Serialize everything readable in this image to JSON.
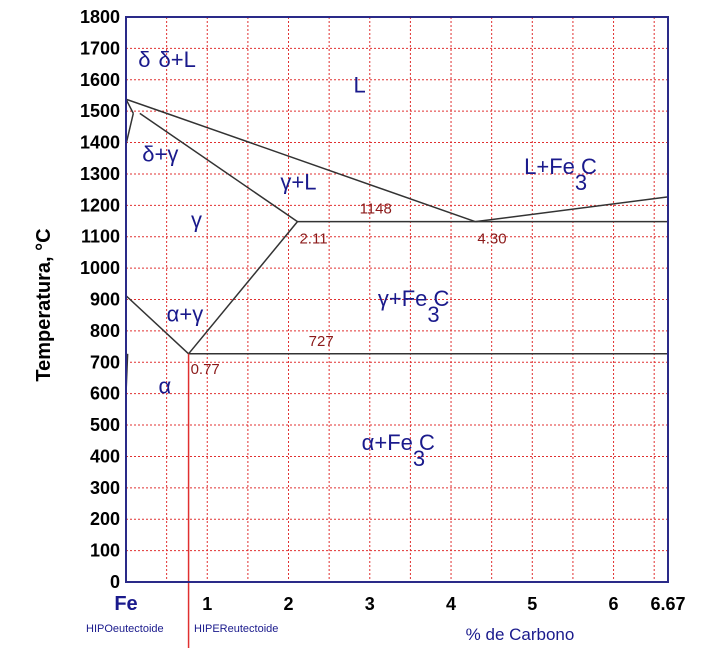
{
  "chart_data": {
    "type": "line",
    "title": "",
    "ylabel": "Temperatura, °C",
    "xlabel": "% de Carbono",
    "ylim": [
      0,
      1800
    ],
    "xlim": [
      0,
      6.67
    ],
    "yticks": [
      "0",
      "100",
      "200",
      "300",
      "400",
      "500",
      "600",
      "700",
      "800",
      "900",
      "1000",
      "1100",
      "1200",
      "1300",
      "1400",
      "1500",
      "1600",
      "1700",
      "1800"
    ],
    "xticks": [
      {
        "value": 0,
        "label": "Fe"
      },
      {
        "value": 1,
        "label": "1"
      },
      {
        "value": 2,
        "label": "2"
      },
      {
        "value": 3,
        "label": "3"
      },
      {
        "value": 4,
        "label": "4"
      },
      {
        "value": 5,
        "label": "5"
      },
      {
        "value": 6,
        "label": "6"
      },
      {
        "value": 6.67,
        "label": "6.67"
      }
    ],
    "grid": true,
    "lines": [
      {
        "name": "liquidus-left",
        "points": [
          [
            0,
            1538
          ],
          [
            0.5,
            1493
          ],
          [
            4.3,
            1148
          ]
        ]
      },
      {
        "name": "liquidus-right",
        "points": [
          [
            4.3,
            1148
          ],
          [
            6.67,
            1227
          ]
        ]
      },
      {
        "name": "solidus",
        "points": [
          [
            0.17,
            1493
          ],
          [
            2.11,
            1148
          ]
        ]
      },
      {
        "name": "eutectic",
        "points": [
          [
            2.11,
            1148
          ],
          [
            6.67,
            1148
          ]
        ]
      },
      {
        "name": "acm",
        "points": [
          [
            0.77,
            727
          ],
          [
            2.11,
            1148
          ]
        ]
      },
      {
        "name": "a3",
        "points": [
          [
            0,
            912
          ],
          [
            0.77,
            727
          ]
        ]
      },
      {
        "name": "eutectoid",
        "points": [
          [
            0.77,
            727
          ],
          [
            6.67,
            727
          ]
        ]
      },
      {
        "name": "delta-bound-1",
        "points": [
          [
            0,
            1394
          ],
          [
            0.09,
            1493
          ]
        ]
      },
      {
        "name": "delta-bound-2",
        "points": [
          [
            0,
            1538
          ],
          [
            0.09,
            1493
          ]
        ]
      },
      {
        "name": "alpha-bound",
        "points": [
          [
            0.02,
            727
          ],
          [
            0,
            600
          ]
        ]
      }
    ],
    "points": [
      {
        "x": 0.77,
        "y": 727,
        "label": "0.77"
      },
      {
        "x": 2.11,
        "y": 1148,
        "label": "2.11"
      },
      {
        "x": 4.3,
        "y": 1148,
        "label": "4.30"
      },
      {
        "label": "727",
        "x": 2.1,
        "y": 727
      },
      {
        "label": "1148",
        "x": 2.85,
        "y": 1148
      }
    ],
    "regions": [
      {
        "label": "L",
        "x": 2.8,
        "y": 1560
      },
      {
        "label": "δ",
        "x": 0.15,
        "y": 1640
      },
      {
        "label": "δ+L",
        "x": 0.4,
        "y": 1640
      },
      {
        "label": "δ+γ",
        "x": 0.2,
        "y": 1340
      },
      {
        "label": "γ",
        "x": 0.8,
        "y": 1130
      },
      {
        "label": "γ+L",
        "x": 1.9,
        "y": 1250
      },
      {
        "label": "L+Fe C",
        "subscript": "3",
        "x": 4.9,
        "y": 1300
      },
      {
        "label": "α+γ",
        "x": 0.5,
        "y": 830
      },
      {
        "label": "γ+Fe C",
        "subscript": "3",
        "x": 3.1,
        "y": 880
      },
      {
        "label": "α",
        "x": 0.4,
        "y": 600
      },
      {
        "label": "α+Fe C",
        "subscript": "3",
        "x": 2.9,
        "y": 420
      }
    ]
  },
  "annotations": {
    "hypo": "HIPOeutectoide",
    "hyper": "HIPEReutectoide"
  },
  "colors": {
    "grid": "#e03030",
    "axis": "#2a2a88",
    "curve": "#333333",
    "region_text": "#1a1a8c",
    "point_text": "#8b1a1a",
    "marker": "#e03030"
  }
}
